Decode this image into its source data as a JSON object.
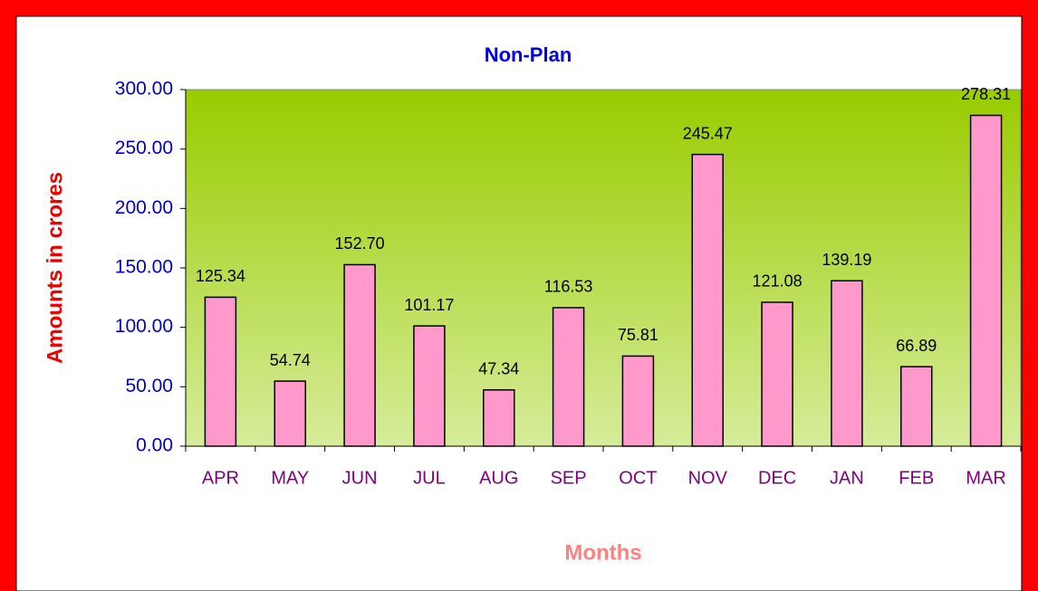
{
  "chart_data": {
    "type": "bar",
    "title": "Non-Plan",
    "x_label": "Months",
    "y_label": "Amounts in crores",
    "categories": [
      "APR",
      "MAY",
      "JUN",
      "JUL",
      "AUG",
      "SEP",
      "OCT",
      "NOV",
      "DEC",
      "JAN",
      "FEB",
      "MAR"
    ],
    "values": [
      125.34,
      54.74,
      152.7,
      101.17,
      47.34,
      116.53,
      75.81,
      245.47,
      121.08,
      139.19,
      66.89,
      278.31
    ],
    "value_labels": [
      "125.34",
      "54.74",
      "152.70",
      "101.17",
      "47.34",
      "116.53",
      "75.81",
      "245.47",
      "121.08",
      "139.19",
      "66.89",
      "278.31"
    ],
    "color": "#ff99cc",
    "ylim": [
      0,
      300
    ],
    "yticks": [
      {
        "value": 0,
        "label": "0.00"
      },
      {
        "value": 50,
        "label": "50.00"
      },
      {
        "value": 100,
        "label": "100.00"
      },
      {
        "value": 150,
        "label": "150.00"
      },
      {
        "value": 200,
        "label": "200.00"
      },
      {
        "value": 250,
        "label": "250.00"
      },
      {
        "value": 300,
        "label": "300.00"
      }
    ]
  }
}
